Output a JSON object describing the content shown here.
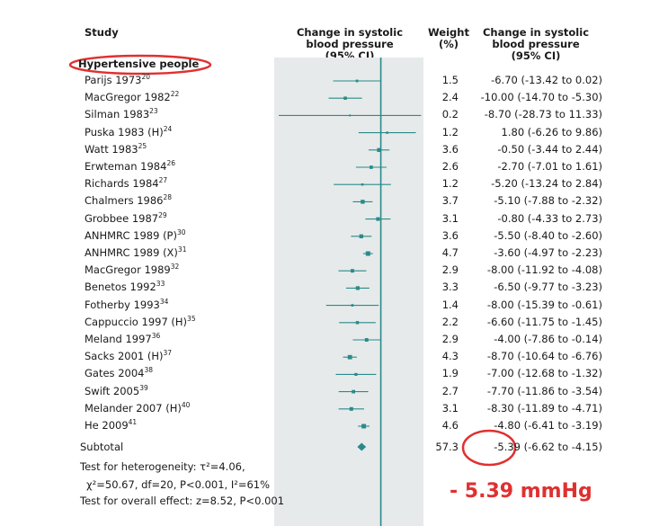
{
  "headers": {
    "study": "Study",
    "effect_line1": "Change in systolic",
    "effect_line2": "blood pressure",
    "effect_line3": "(95% CI)",
    "weight_line1": "Weight",
    "weight_line2": "(%)",
    "ci_line1": "Change in systolic",
    "ci_line2": "blood pressure",
    "ci_line3": "(95% CI)"
  },
  "group_label": "Hypertensive people",
  "footer": {
    "heterogeneity_line1": "Test for heterogeneity: τ²=4.06,",
    "heterogeneity_line2": "χ²=50.67, df=20, P<0.001, I²=61%",
    "overall_effect": "Test for overall effect: z=8.52, P<0.001"
  },
  "annotation": "- 5.39 mmHg",
  "colors": {
    "marker": "#2a8a8a",
    "plot_band": "#e7eaea",
    "annotation": "#e03030",
    "highlight_circle": "#e03030"
  },
  "chart_data": {
    "type": "forest",
    "x_range": [
      -30,
      12
    ],
    "null_line": 0,
    "studies": [
      {
        "name": "Parijs 1973",
        "ref": "20",
        "weight": "1.5",
        "estimate": -6.7,
        "lower": -13.42,
        "upper": 0.02,
        "ci_text": "-6.70 (-13.42 to 0.02)"
      },
      {
        "name": "MacGregor 1982",
        "ref": "22",
        "weight": "2.4",
        "estimate": -10.0,
        "lower": -14.7,
        "upper": -5.3,
        "ci_text": "-10.00 (-14.70 to -5.30)"
      },
      {
        "name": "Silman 1983",
        "ref": "23",
        "weight": "0.2",
        "estimate": -8.7,
        "lower": -28.73,
        "upper": 11.33,
        "ci_text": "-8.70 (-28.73 to 11.33)"
      },
      {
        "name": "Puska 1983 (H)",
        "ref": "24",
        "weight": "1.2",
        "estimate": 1.8,
        "lower": -6.26,
        "upper": 9.86,
        "ci_text": "1.80 (-6.26 to 9.86)"
      },
      {
        "name": "Watt 1983",
        "ref": "25",
        "weight": "3.6",
        "estimate": -0.5,
        "lower": -3.44,
        "upper": 2.44,
        "ci_text": "-0.50 (-3.44 to 2.44)"
      },
      {
        "name": "Erwteman 1984",
        "ref": "26",
        "weight": "2.6",
        "estimate": -2.7,
        "lower": -7.01,
        "upper": 1.61,
        "ci_text": "-2.70 (-7.01 to 1.61)"
      },
      {
        "name": "Richards 1984",
        "ref": "27",
        "weight": "1.2",
        "estimate": -5.2,
        "lower": -13.24,
        "upper": 2.84,
        "ci_text": "-5.20 (-13.24 to 2.84)"
      },
      {
        "name": "Chalmers 1986",
        "ref": "28",
        "weight": "3.7",
        "estimate": -5.1,
        "lower": -7.88,
        "upper": -2.32,
        "ci_text": "-5.10 (-7.88 to -2.32)"
      },
      {
        "name": "Grobbee 1987",
        "ref": "29",
        "weight": "3.1",
        "estimate": -0.8,
        "lower": -4.33,
        "upper": 2.73,
        "ci_text": "-0.80 (-4.33 to 2.73)"
      },
      {
        "name": "ANHMRC 1989 (P)",
        "ref": "30",
        "weight": "3.6",
        "estimate": -5.5,
        "lower": -8.4,
        "upper": -2.6,
        "ci_text": "-5.50 (-8.40 to -2.60)"
      },
      {
        "name": "ANHMRC 1989 (X)",
        "ref": "31",
        "weight": "4.7",
        "estimate": -3.6,
        "lower": -4.97,
        "upper": -2.23,
        "ci_text": "-3.60 (-4.97 to -2.23)"
      },
      {
        "name": "MacGregor 1989",
        "ref": "32",
        "weight": "2.9",
        "estimate": -8.0,
        "lower": -11.92,
        "upper": -4.08,
        "ci_text": "-8.00 (-11.92 to -4.08)"
      },
      {
        "name": "Benetos 1992",
        "ref": "33",
        "weight": "3.3",
        "estimate": -6.5,
        "lower": -9.77,
        "upper": -3.23,
        "ci_text": "-6.50 (-9.77 to -3.23)"
      },
      {
        "name": "Fotherby 1993",
        "ref": "34",
        "weight": "1.4",
        "estimate": -8.0,
        "lower": -15.39,
        "upper": -0.61,
        "ci_text": "-8.00 (-15.39 to -0.61)"
      },
      {
        "name": "Cappuccio 1997 (H)",
        "ref": "35",
        "weight": "2.2",
        "estimate": -6.6,
        "lower": -11.75,
        "upper": -1.45,
        "ci_text": "-6.60 (-11.75 to -1.45)"
      },
      {
        "name": "Meland 1997",
        "ref": "36",
        "weight": "2.9",
        "estimate": -4.0,
        "lower": -7.86,
        "upper": -0.14,
        "ci_text": "-4.00 (-7.86 to -0.14)"
      },
      {
        "name": "Sacks 2001 (H)",
        "ref": "37",
        "weight": "4.3",
        "estimate": -8.7,
        "lower": -10.64,
        "upper": -6.76,
        "ci_text": "-8.70 (-10.64 to -6.76)"
      },
      {
        "name": "Gates 2004",
        "ref": "38",
        "weight": "1.9",
        "estimate": -7.0,
        "lower": -12.68,
        "upper": -1.32,
        "ci_text": "-7.00 (-12.68 to -1.32)"
      },
      {
        "name": "Swift 2005",
        "ref": "39",
        "weight": "2.7",
        "estimate": -7.7,
        "lower": -11.86,
        "upper": -3.54,
        "ci_text": "-7.70 (-11.86 to -3.54)"
      },
      {
        "name": "Melander 2007 (H)",
        "ref": "40",
        "weight": "3.1",
        "estimate": -8.3,
        "lower": -11.89,
        "upper": -4.71,
        "ci_text": "-8.30 (-11.89 to -4.71)"
      },
      {
        "name": "He 2009",
        "ref": "41",
        "weight": "4.6",
        "estimate": -4.8,
        "lower": -6.41,
        "upper": -3.19,
        "ci_text": "-4.80 (-6.41 to -3.19)"
      }
    ],
    "subtotal": {
      "name": "Subtotal",
      "weight": "57.3",
      "estimate": -5.39,
      "lower": -6.62,
      "upper": -4.15,
      "ci_est_text": "-5.39",
      "ci_rest_text": "(-6.62 to -4.15)"
    }
  }
}
